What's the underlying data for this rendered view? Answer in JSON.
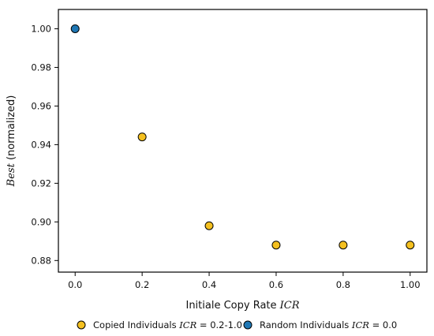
{
  "chart_data": {
    "type": "scatter",
    "xlabel": {
      "prefix": "Initiale Copy Rate ",
      "math": "ICR"
    },
    "ylabel": {
      "math": "Best",
      "suffix": " (normalized)"
    },
    "xlim": [
      -0.05,
      1.05
    ],
    "ylim": [
      0.874,
      1.01
    ],
    "x_ticks": [
      0.0,
      0.2,
      0.4,
      0.6,
      0.8,
      1.0
    ],
    "x_tick_labels": [
      "0.0",
      "0.2",
      "0.4",
      "0.6",
      "0.8",
      "1.00"
    ],
    "y_ticks": [
      0.88,
      0.9,
      0.92,
      0.94,
      0.96,
      0.98,
      1.0
    ],
    "y_tick_labels": [
      "0.88",
      "0.90",
      "0.92",
      "0.94",
      "0.96",
      "0.98",
      "1.00"
    ],
    "grid": false,
    "legend_position": "bottom",
    "series": [
      {
        "name": "Copied Individuals ICR = 0.2-1.0",
        "legend_prefix": "Copied Individuals ",
        "legend_math": "ICR",
        "legend_suffix": " = 0.2-1.0",
        "color": "#f4c020",
        "points": [
          {
            "x": 0.2,
            "y": 0.944
          },
          {
            "x": 0.4,
            "y": 0.898
          },
          {
            "x": 0.6,
            "y": 0.888
          },
          {
            "x": 0.8,
            "y": 0.888
          },
          {
            "x": 1.0,
            "y": 0.888
          }
        ]
      },
      {
        "name": "Random Individuals ICR = 0.0",
        "legend_prefix": "Random Individuals ",
        "legend_math": "ICR",
        "legend_suffix": " = 0.0",
        "color": "#1f77b4",
        "points": [
          {
            "x": 0.0,
            "y": 1.0
          }
        ]
      }
    ]
  }
}
